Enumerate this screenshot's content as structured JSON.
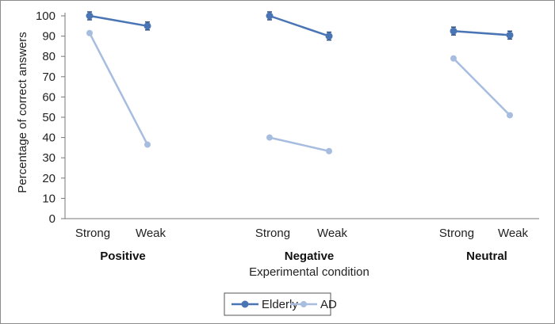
{
  "chart_data": {
    "type": "line",
    "xlabel": "Experimental condition",
    "ylabel": "Percentage of correct answers",
    "ylim": [
      0,
      100
    ],
    "yticks": [
      0,
      10,
      20,
      30,
      40,
      50,
      60,
      70,
      80,
      90,
      100
    ],
    "grid": false,
    "legend_position": "bottom-center",
    "groups": [
      {
        "label": "Positive",
        "categories": [
          "Strong",
          "Weak"
        ]
      },
      {
        "label": "Negative",
        "categories": [
          "Strong",
          "Weak"
        ]
      },
      {
        "label": "Neutral",
        "categories": [
          "Strong",
          "Weak"
        ]
      }
    ],
    "series": [
      {
        "name": "Elderly",
        "color": "#4a75b5",
        "error_bars": true,
        "values": [
          [
            100,
            95
          ],
          [
            100,
            90
          ],
          [
            92.5,
            90.5
          ]
        ]
      },
      {
        "name": "AD",
        "color": "#a7bde0",
        "error_bars": false,
        "values": [
          [
            91.5,
            36.5
          ],
          [
            40,
            33.3
          ],
          [
            79,
            51
          ]
        ]
      }
    ]
  }
}
